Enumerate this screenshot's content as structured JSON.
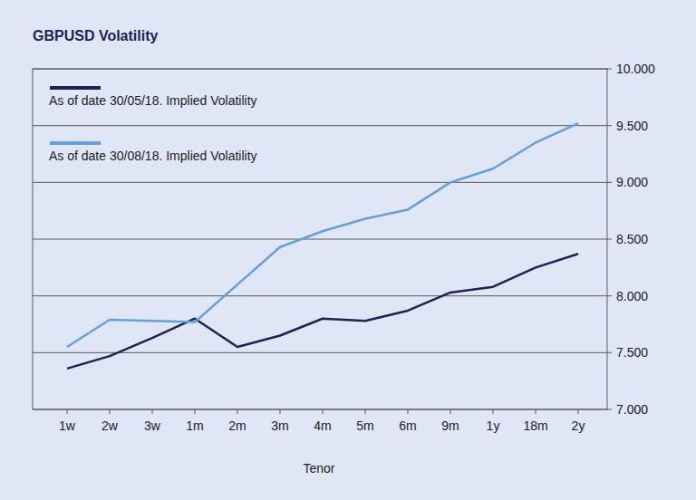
{
  "chart_data": {
    "type": "line",
    "title": "GBPUSD Volatility",
    "x_label": "Tenor",
    "categories": [
      "1w",
      "2w",
      "3w",
      "1m",
      "2m",
      "3m",
      "4m",
      "5m",
      "6m",
      "9m",
      "1y",
      "18m",
      "2y"
    ],
    "series": [
      {
        "name": "As of date 30/05/18. Implied Volatility",
        "color": "#1c2452",
        "values": [
          7.36,
          7.47,
          7.63,
          7.8,
          7.55,
          7.65,
          7.8,
          7.78,
          7.87,
          8.03,
          8.08,
          8.25,
          8.37
        ]
      },
      {
        "name": "As of date 30/08/18. Implied Volatility",
        "color": "#6a9fd4",
        "values": [
          7.55,
          7.79,
          7.78,
          7.77,
          8.1,
          8.43,
          8.57,
          8.68,
          8.76,
          9.0,
          9.12,
          9.35,
          9.52
        ]
      }
    ],
    "ylim": [
      7,
      10
    ],
    "yticks": [
      {
        "value": 7,
        "label": "7.000"
      },
      {
        "value": 7.5,
        "label": "7.500"
      },
      {
        "value": 8,
        "label": "8.000"
      },
      {
        "value": 8.5,
        "label": "8.500"
      },
      {
        "value": 9,
        "label": "9.000"
      },
      {
        "value": 9.5,
        "label": "9.500"
      },
      {
        "value": 10,
        "label": "10.000"
      }
    ],
    "grid": true,
    "legend": "top-left"
  }
}
